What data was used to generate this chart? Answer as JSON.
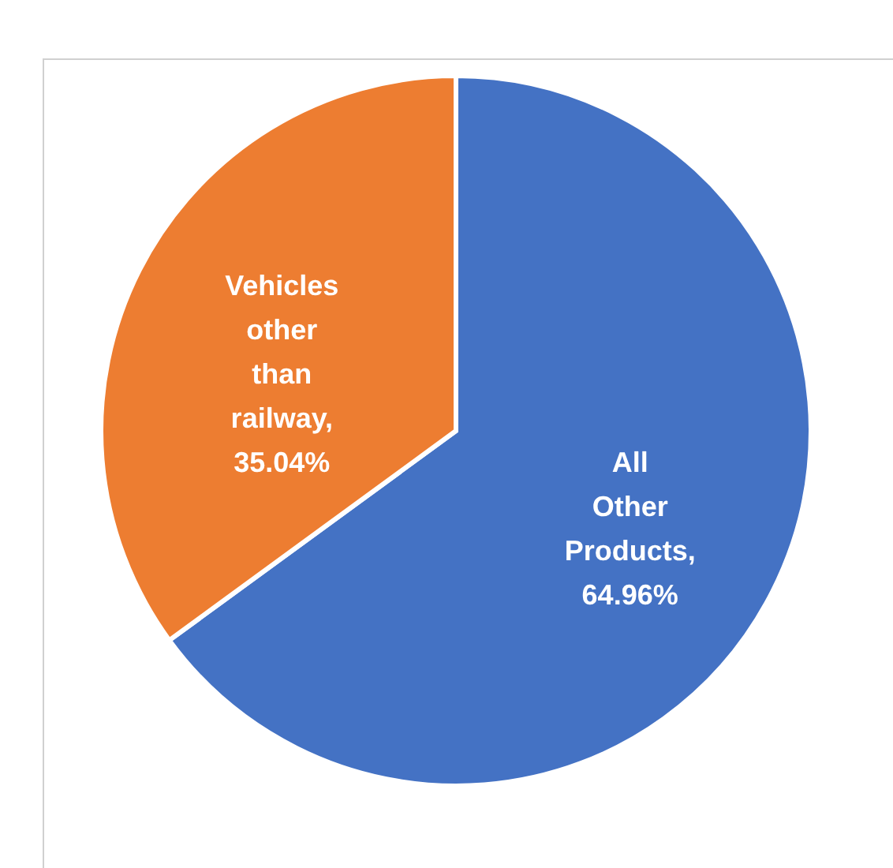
{
  "chart_data": {
    "type": "pie",
    "categories": [
      "All Other Products",
      "Vehicles other than railway"
    ],
    "values": [
      64.96,
      35.04
    ],
    "colors": [
      "#4472c4",
      "#ed7d31"
    ],
    "value_labels": [
      ", 64.96%",
      ", 35.04%"
    ]
  }
}
